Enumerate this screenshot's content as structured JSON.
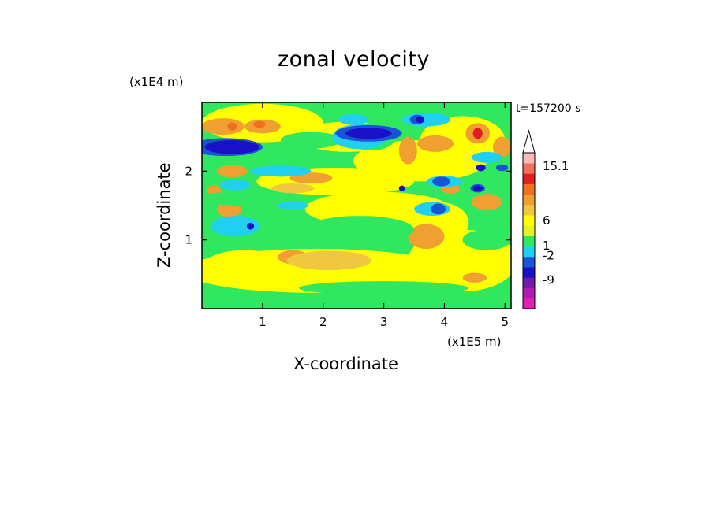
{
  "chart_data": {
    "type": "heatmap",
    "title": "zonal velocity",
    "xlabel": "X-coordinate",
    "ylabel": "Z-coordinate",
    "x_unit": "(x1E5 m)",
    "y_unit": "(x1E4 m)",
    "time_label": "t=157200 s",
    "xlim": [
      0,
      5.1
    ],
    "ylim": [
      0,
      3.0
    ],
    "x_ticks": [
      "1",
      "2",
      "3",
      "4",
      "5"
    ],
    "y_ticks": [
      "1",
      "2"
    ],
    "colorbar": {
      "levels": [
        {
          "color": "#e020b0"
        },
        {
          "color": "#b01ab0"
        },
        {
          "color": "#701ca8"
        },
        {
          "color": "#1a10c8"
        },
        {
          "color": "#1a52d8"
        },
        {
          "color": "#20d0f0"
        },
        {
          "color": "#30e860"
        },
        {
          "color": "#e8f020"
        },
        {
          "color": "#ffff00"
        },
        {
          "color": "#f0c840"
        },
        {
          "color": "#f0a030"
        },
        {
          "color": "#f07020"
        },
        {
          "color": "#e02020"
        },
        {
          "color": "#f07060"
        },
        {
          "color": "#f8b8b8"
        }
      ],
      "labels": [
        "15.1",
        "6",
        "1",
        "-2",
        "-9"
      ],
      "label_values": [
        15.1,
        6,
        1,
        -2,
        -9
      ]
    },
    "field": {
      "background_color": "#30e860",
      "blobs": [
        {
          "x": 1.9,
          "z": 0.55,
          "rx": 2.2,
          "rz": 0.32,
          "color": "#ffff00"
        },
        {
          "x": 0.7,
          "z": 0.6,
          "rx": 0.7,
          "rz": 0.25,
          "color": "#ffff00"
        },
        {
          "x": 4.3,
          "z": 0.7,
          "rx": 0.9,
          "rz": 0.45,
          "color": "#ffff00"
        },
        {
          "x": 2.9,
          "z": 1.45,
          "rx": 1.2,
          "rz": 0.25,
          "color": "#ffff00"
        },
        {
          "x": 2.2,
          "z": 1.85,
          "rx": 1.3,
          "rz": 0.2,
          "color": "#ffff00"
        },
        {
          "x": 3.6,
          "z": 2.15,
          "rx": 1.1,
          "rz": 0.3,
          "color": "#ffff00"
        },
        {
          "x": 1.0,
          "z": 2.7,
          "rx": 1.0,
          "rz": 0.28,
          "color": "#ffff00"
        },
        {
          "x": 2.4,
          "z": 2.5,
          "rx": 0.8,
          "rz": 0.22,
          "color": "#ffff00"
        },
        {
          "x": 4.3,
          "z": 2.45,
          "rx": 0.7,
          "rz": 0.35,
          "color": "#ffff00"
        },
        {
          "x": 3.9,
          "z": 1.25,
          "rx": 0.5,
          "rz": 0.3,
          "color": "#ffff00"
        },
        {
          "x": 0.35,
          "z": 2.65,
          "rx": 0.35,
          "rz": 0.12,
          "color": "#f0a030"
        },
        {
          "x": 1.0,
          "z": 2.65,
          "rx": 0.3,
          "rz": 0.1,
          "color": "#f0a030"
        },
        {
          "x": 0.5,
          "z": 2.0,
          "rx": 0.25,
          "rz": 0.09,
          "color": "#f0a030"
        },
        {
          "x": 0.2,
          "z": 1.7,
          "rx": 0.12,
          "rz": 0.1,
          "color": "#f0a030"
        },
        {
          "x": 1.8,
          "z": 1.9,
          "rx": 0.35,
          "rz": 0.08,
          "color": "#f0a030"
        },
        {
          "x": 1.5,
          "z": 1.75,
          "rx": 0.35,
          "rz": 0.07,
          "color": "#f0c840"
        },
        {
          "x": 0.45,
          "z": 1.45,
          "rx": 0.2,
          "rz": 0.12,
          "color": "#f0a030"
        },
        {
          "x": 1.5,
          "z": 0.75,
          "rx": 0.25,
          "rz": 0.1,
          "color": "#f0a030"
        },
        {
          "x": 3.7,
          "z": 1.05,
          "rx": 0.3,
          "rz": 0.18,
          "color": "#f0a030"
        },
        {
          "x": 3.4,
          "z": 2.3,
          "rx": 0.15,
          "rz": 0.2,
          "color": "#f0a030"
        },
        {
          "x": 3.85,
          "z": 2.4,
          "rx": 0.3,
          "rz": 0.12,
          "color": "#f0a030"
        },
        {
          "x": 4.55,
          "z": 2.55,
          "rx": 0.2,
          "rz": 0.15,
          "color": "#f0a030"
        },
        {
          "x": 4.95,
          "z": 2.35,
          "rx": 0.15,
          "rz": 0.15,
          "color": "#f0a030"
        },
        {
          "x": 4.7,
          "z": 1.55,
          "rx": 0.25,
          "rz": 0.12,
          "color": "#f0a030"
        },
        {
          "x": 4.1,
          "z": 1.75,
          "rx": 0.15,
          "rz": 0.08,
          "color": "#f0a030"
        },
        {
          "x": 2.1,
          "z": 0.7,
          "rx": 0.7,
          "rz": 0.14,
          "color": "#f0c840"
        },
        {
          "x": 4.5,
          "z": 0.45,
          "rx": 0.2,
          "rz": 0.07,
          "color": "#f0a030"
        },
        {
          "x": 0.5,
          "z": 2.65,
          "rx": 0.08,
          "rz": 0.06,
          "color": "#f07020"
        },
        {
          "x": 0.95,
          "z": 2.68,
          "rx": 0.1,
          "rz": 0.05,
          "color": "#f07020"
        },
        {
          "x": 4.55,
          "z": 2.55,
          "rx": 0.08,
          "rz": 0.08,
          "color": "#e02020"
        },
        {
          "x": 0.7,
          "z": 1.6,
          "rx": 0.9,
          "rz": 0.1,
          "color": "#30e860"
        },
        {
          "x": 0.6,
          "z": 1.2,
          "rx": 0.6,
          "rz": 0.14,
          "color": "#30e860"
        },
        {
          "x": 2.6,
          "z": 1.15,
          "rx": 0.9,
          "rz": 0.2,
          "color": "#30e860"
        },
        {
          "x": 1.8,
          "z": 2.45,
          "rx": 0.5,
          "rz": 0.12,
          "color": "#30e860"
        },
        {
          "x": 3.0,
          "z": 0.3,
          "rx": 1.4,
          "rz": 0.1,
          "color": "#30e860"
        },
        {
          "x": 4.7,
          "z": 1.0,
          "rx": 0.4,
          "rz": 0.15,
          "color": "#30e860"
        },
        {
          "x": 2.8,
          "z": 2.5,
          "rx": 0.4,
          "rz": 0.2,
          "color": "#30e860"
        },
        {
          "x": 0.55,
          "z": 1.8,
          "rx": 0.25,
          "rz": 0.08,
          "color": "#20d0f0"
        },
        {
          "x": 1.3,
          "z": 2.0,
          "rx": 0.5,
          "rz": 0.08,
          "color": "#20d0f0"
        },
        {
          "x": 0.55,
          "z": 1.2,
          "rx": 0.4,
          "rz": 0.15,
          "color": "#20d0f0"
        },
        {
          "x": 1.5,
          "z": 1.5,
          "rx": 0.25,
          "rz": 0.06,
          "color": "#20d0f0"
        },
        {
          "x": 2.5,
          "z": 2.75,
          "rx": 0.25,
          "rz": 0.08,
          "color": "#20d0f0"
        },
        {
          "x": 2.6,
          "z": 2.5,
          "rx": 0.45,
          "rz": 0.18,
          "color": "#20d0f0"
        },
        {
          "x": 3.7,
          "z": 2.75,
          "rx": 0.4,
          "rz": 0.1,
          "color": "#20d0f0"
        },
        {
          "x": 3.8,
          "z": 1.45,
          "rx": 0.3,
          "rz": 0.1,
          "color": "#20d0f0"
        },
        {
          "x": 4.0,
          "z": 1.85,
          "rx": 0.3,
          "rz": 0.08,
          "color": "#20d0f0"
        },
        {
          "x": 4.7,
          "z": 2.2,
          "rx": 0.25,
          "rz": 0.08,
          "color": "#20d0f0"
        },
        {
          "x": 0.4,
          "z": 2.35,
          "rx": 0.6,
          "rz": 0.13,
          "color": "#1a52d8"
        },
        {
          "x": 2.75,
          "z": 2.55,
          "rx": 0.55,
          "rz": 0.12,
          "color": "#1a52d8"
        },
        {
          "x": 3.55,
          "z": 2.75,
          "rx": 0.12,
          "rz": 0.07,
          "color": "#1a52d8"
        },
        {
          "x": 3.95,
          "z": 1.85,
          "rx": 0.15,
          "rz": 0.07,
          "color": "#1a52d8"
        },
        {
          "x": 4.55,
          "z": 1.75,
          "rx": 0.12,
          "rz": 0.06,
          "color": "#1a52d8"
        },
        {
          "x": 4.95,
          "z": 2.05,
          "rx": 0.1,
          "rz": 0.05,
          "color": "#1a52d8"
        },
        {
          "x": 3.9,
          "z": 1.45,
          "rx": 0.12,
          "rz": 0.08,
          "color": "#1a52d8"
        },
        {
          "x": 0.5,
          "z": 2.35,
          "rx": 0.45,
          "rz": 0.1,
          "color": "#1a10c8"
        },
        {
          "x": 2.75,
          "z": 2.55,
          "rx": 0.38,
          "rz": 0.08,
          "color": "#1a10c8"
        },
        {
          "x": 3.6,
          "z": 2.75,
          "rx": 0.07,
          "rz": 0.05,
          "color": "#1a10c8"
        },
        {
          "x": 3.3,
          "z": 1.75,
          "rx": 0.05,
          "rz": 0.04,
          "color": "#1a10c8"
        },
        {
          "x": 4.55,
          "z": 1.75,
          "rx": 0.08,
          "rz": 0.04,
          "color": "#1a10c8"
        },
        {
          "x": 0.8,
          "z": 1.2,
          "rx": 0.06,
          "rz": 0.05,
          "color": "#1a10c8"
        },
        {
          "x": 4.6,
          "z": 2.05,
          "rx": 0.08,
          "rz": 0.05,
          "color": "#1a10c8"
        }
      ]
    }
  }
}
